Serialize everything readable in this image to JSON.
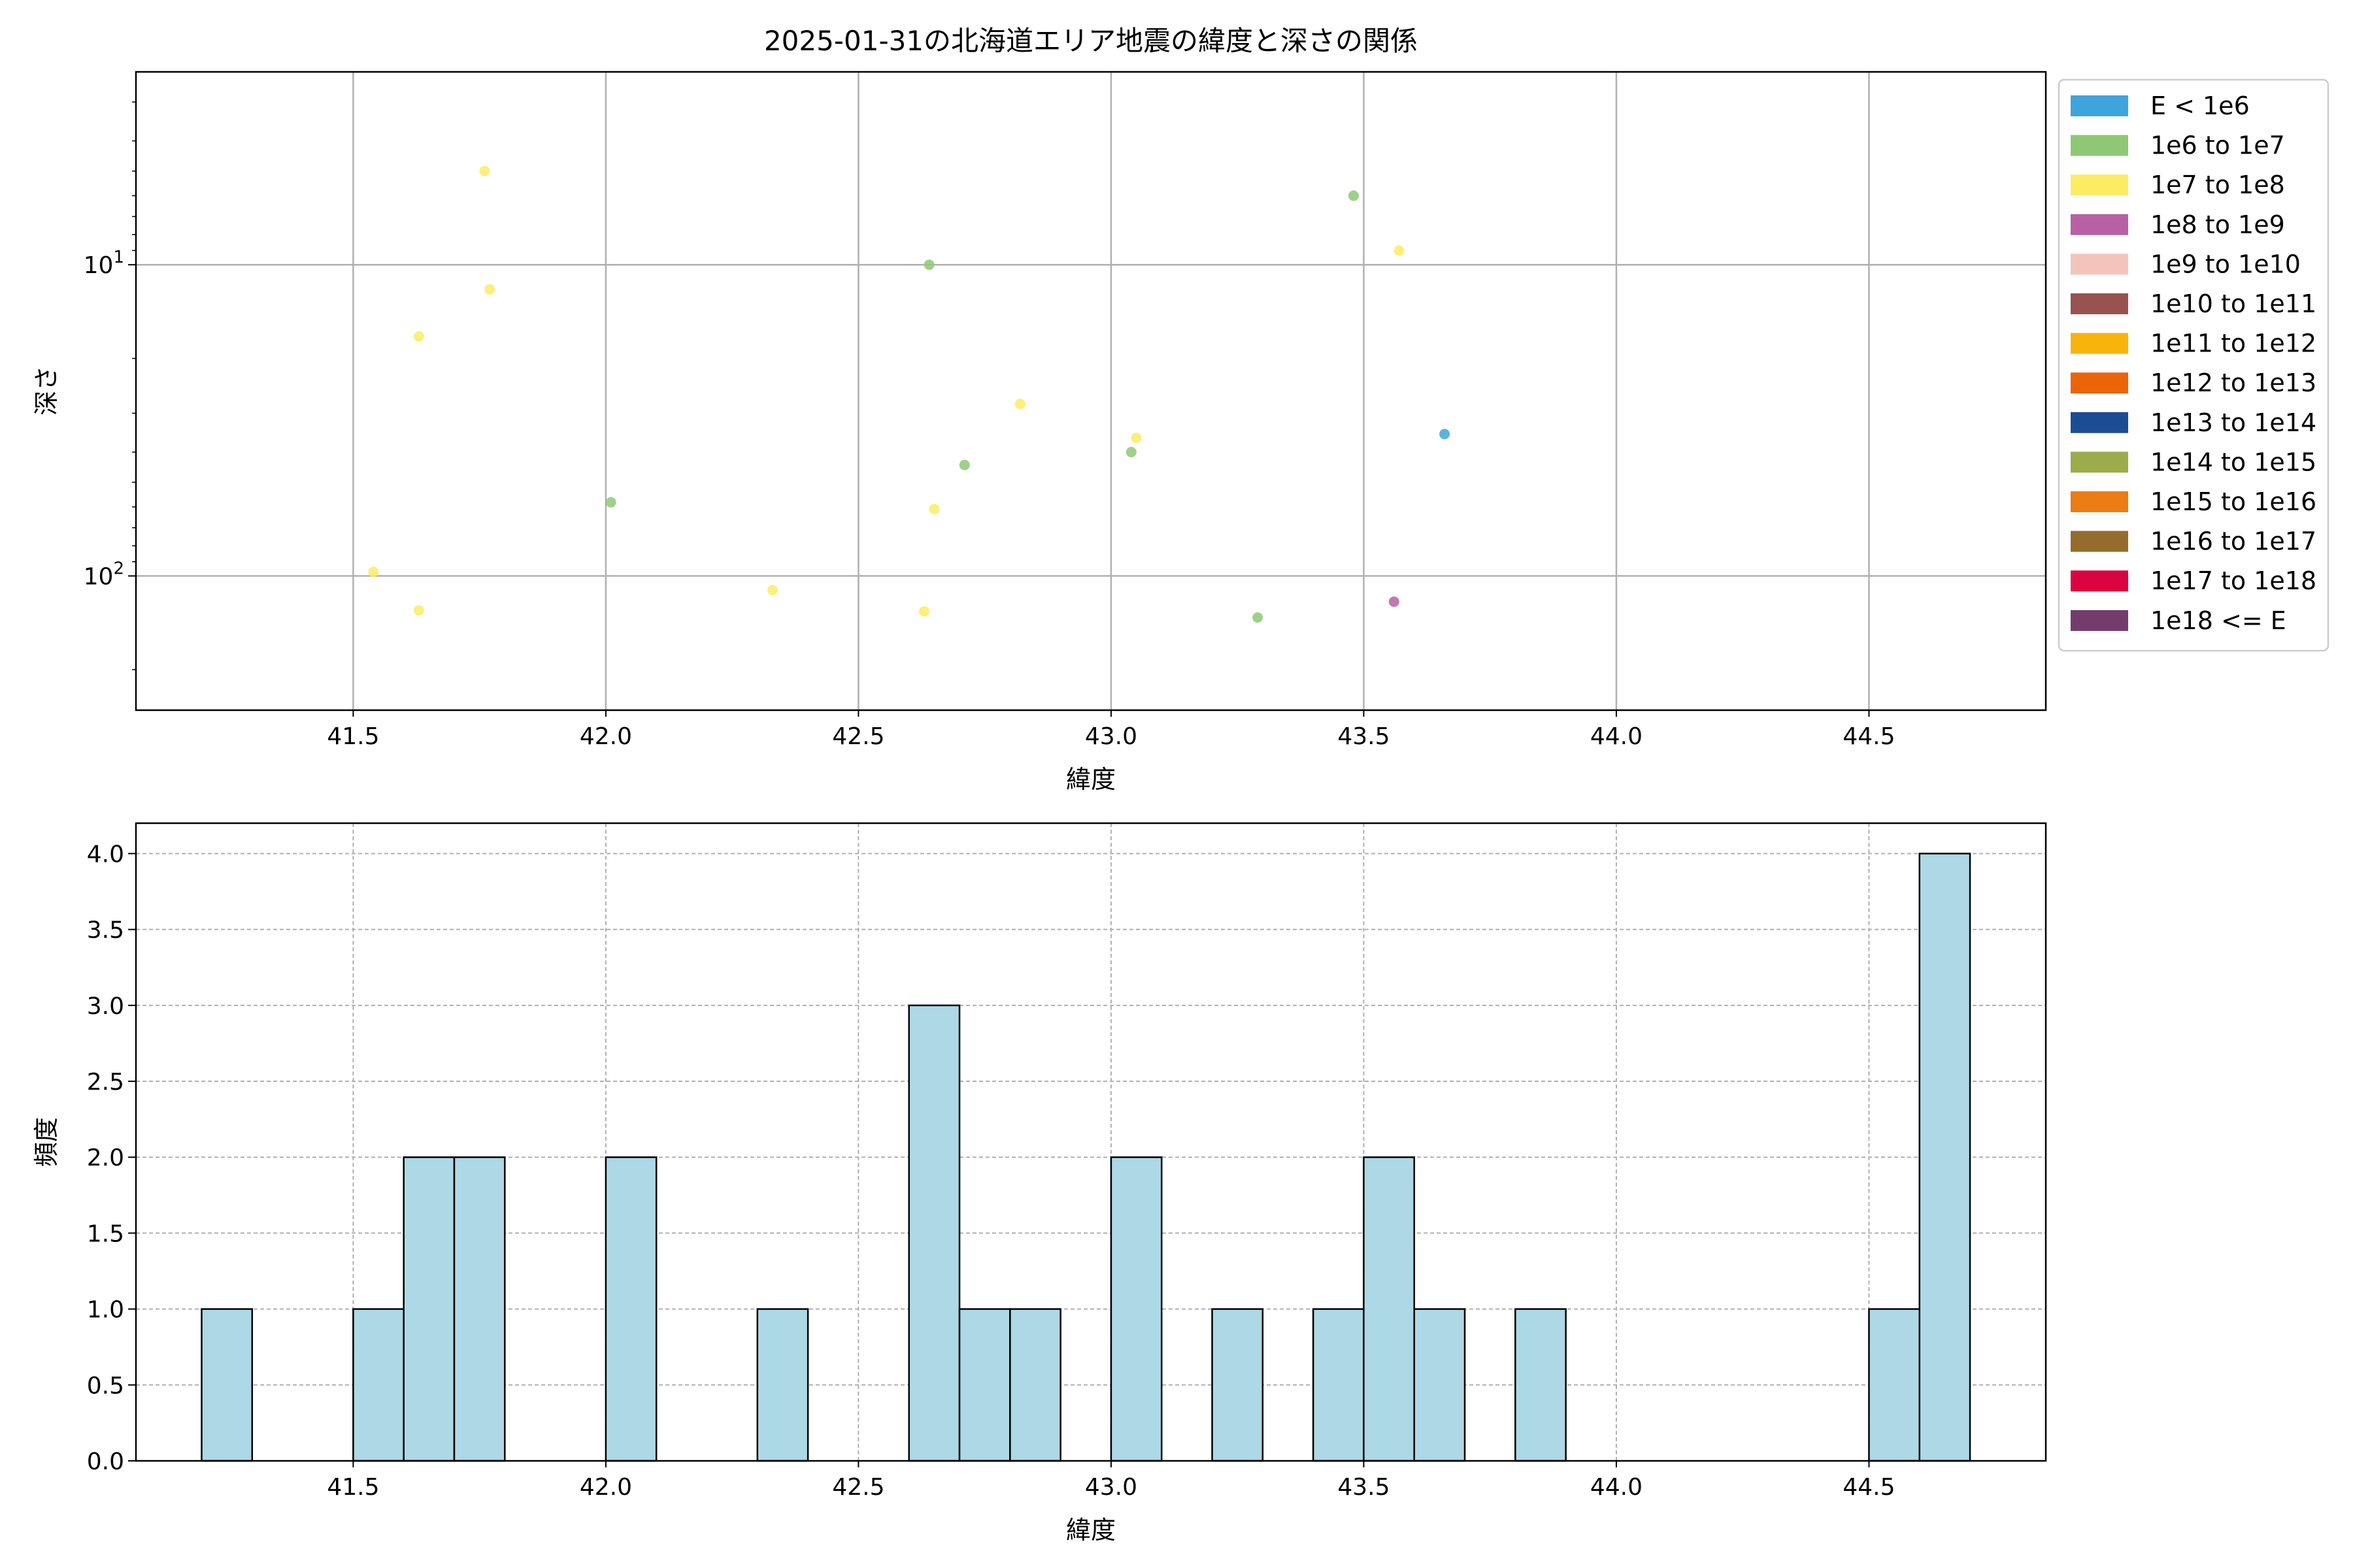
{
  "chart_data": [
    {
      "type": "scatter",
      "title": "2025-01-31の北海道エリア地震の緯度と深さの関係",
      "xlabel": "緯度",
      "ylabel": "深さ",
      "xlim": [
        41.07,
        44.85
      ],
      "ylim": [
        270,
        2.4
      ],
      "y_scale": "log",
      "y_inverted": true,
      "grid": true,
      "x_ticks": [
        "41.5",
        "42.0",
        "42.5",
        "43.0",
        "43.5",
        "44.0",
        "44.5"
      ],
      "x_tick_values": [
        41.5,
        42.0,
        42.5,
        43.0,
        43.5,
        44.0,
        44.5
      ],
      "y_ticks": [
        {
          "base": "10",
          "exp": "1",
          "value": 10
        },
        {
          "base": "10",
          "exp": "2",
          "value": 100
        }
      ],
      "legend_position": "outside-right",
      "legend": [
        {
          "label": "E < 1e6",
          "color": "#3fa4dc"
        },
        {
          "label": "1e6 to 1e7",
          "color": "#8fc874"
        },
        {
          "label": "1e7 to 1e8",
          "color": "#fcec64"
        },
        {
          "label": "1e8 to 1e9",
          "color": "#b860a4"
        },
        {
          "label": "1e9 to 1e10",
          "color": "#f4c4bc"
        },
        {
          "label": "1e10 to 1e11",
          "color": "#985250"
        },
        {
          "label": "1e11 to 1e12",
          "color": "#f8b40c"
        },
        {
          "label": "1e12 to 1e13",
          "color": "#ec6408"
        },
        {
          "label": "1e13 to 1e14",
          "color": "#1c4c94"
        },
        {
          "label": "1e14 to 1e15",
          "color": "#9cac4c"
        },
        {
          "label": "1e15 to 1e16",
          "color": "#ec7c14"
        },
        {
          "label": "1e16 to 1e17",
          "color": "#946c2c"
        },
        {
          "label": "1e17 to 1e18",
          "color": "#dc0440"
        },
        {
          "label": "1e18 <= E",
          "color": "#743c6c"
        }
      ],
      "points": [
        {
          "x": 41.54,
          "y": 97,
          "cls": 2
        },
        {
          "x": 41.63,
          "y": 17,
          "cls": 2
        },
        {
          "x": 41.63,
          "y": 129,
          "cls": 2
        },
        {
          "x": 41.76,
          "y": 5,
          "cls": 2
        },
        {
          "x": 41.77,
          "y": 12,
          "cls": 2
        },
        {
          "x": 42.01,
          "y": 58,
          "cls": 1
        },
        {
          "x": 42.33,
          "y": 111,
          "cls": 2
        },
        {
          "x": 42.63,
          "y": 130,
          "cls": 2
        },
        {
          "x": 42.64,
          "y": 10,
          "cls": 1
        },
        {
          "x": 42.65,
          "y": 61,
          "cls": 2
        },
        {
          "x": 42.71,
          "y": 44,
          "cls": 1
        },
        {
          "x": 42.82,
          "y": 28,
          "cls": 2
        },
        {
          "x": 43.04,
          "y": 40,
          "cls": 1
        },
        {
          "x": 43.05,
          "y": 36,
          "cls": 2
        },
        {
          "x": 43.29,
          "y": 136,
          "cls": 1
        },
        {
          "x": 43.48,
          "y": 6,
          "cls": 1
        },
        {
          "x": 43.56,
          "y": 121,
          "cls": 3
        },
        {
          "x": 43.57,
          "y": 9,
          "cls": 2
        },
        {
          "x": 43.66,
          "y": 35,
          "cls": 0
        }
      ]
    },
    {
      "type": "bar",
      "histogram": true,
      "xlabel": "緯度",
      "ylabel": "頻度",
      "xlim": [
        41.07,
        44.85
      ],
      "ylim": [
        0,
        4.2
      ],
      "grid": true,
      "bar_color": "#add8e6",
      "x_ticks": [
        "41.5",
        "42.0",
        "42.5",
        "43.0",
        "43.5",
        "44.0",
        "44.5"
      ],
      "x_tick_values": [
        41.5,
        42.0,
        42.5,
        43.0,
        43.5,
        44.0,
        44.5
      ],
      "y_ticks": [
        "0.0",
        "0.5",
        "1.0",
        "1.5",
        "2.0",
        "2.5",
        "3.0",
        "3.5",
        "4.0"
      ],
      "y_tick_values": [
        0,
        0.5,
        1.0,
        1.5,
        2.0,
        2.5,
        3.0,
        3.5,
        4.0
      ],
      "bins": [
        {
          "x0": 41.2,
          "x1": 41.3,
          "count": 1
        },
        {
          "x0": 41.5,
          "x1": 41.6,
          "count": 1
        },
        {
          "x0": 41.6,
          "x1": 41.7,
          "count": 2
        },
        {
          "x0": 41.7,
          "x1": 41.8,
          "count": 2
        },
        {
          "x0": 42.0,
          "x1": 42.1,
          "count": 2
        },
        {
          "x0": 42.3,
          "x1": 42.4,
          "count": 1
        },
        {
          "x0": 42.6,
          "x1": 42.7,
          "count": 3
        },
        {
          "x0": 42.7,
          "x1": 42.8,
          "count": 1
        },
        {
          "x0": 42.8,
          "x1": 42.9,
          "count": 1
        },
        {
          "x0": 43.0,
          "x1": 43.1,
          "count": 2
        },
        {
          "x0": 43.2,
          "x1": 43.3,
          "count": 1
        },
        {
          "x0": 43.4,
          "x1": 43.5,
          "count": 1
        },
        {
          "x0": 43.5,
          "x1": 43.6,
          "count": 2
        },
        {
          "x0": 43.6,
          "x1": 43.7,
          "count": 1
        },
        {
          "x0": 43.8,
          "x1": 43.9,
          "count": 1
        },
        {
          "x0": 44.5,
          "x1": 44.6,
          "count": 1
        },
        {
          "x0": 44.6,
          "x1": 44.7,
          "count": 4
        }
      ]
    }
  ]
}
